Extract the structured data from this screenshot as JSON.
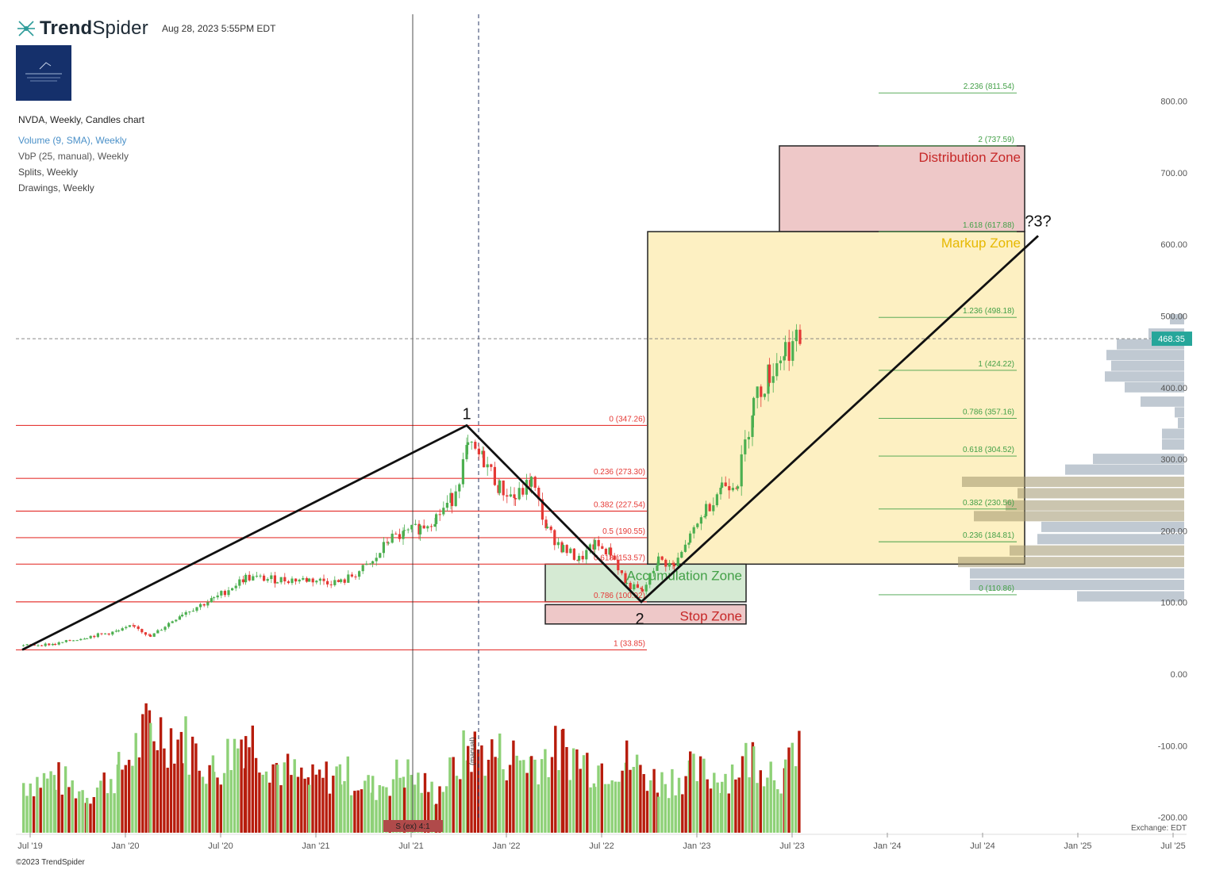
{
  "header": {
    "brand_bold": "Trend",
    "brand_light": "Spider",
    "timestamp": "Aug 28, 2023 5:55PM EDT",
    "copyright": "©2023 TrendSpider",
    "exchange": "Exchange: EDT"
  },
  "legend": {
    "main": "NVDA, Weekly, Candles chart",
    "volume": "Volume (9, SMA), Weekly",
    "vbp": "VbP (25, manual), Weekly",
    "splits": "Splits, Weekly",
    "drawings": "Drawings, Weekly"
  },
  "colors": {
    "up": "#4caf50",
    "down": "#e53935",
    "vol_up": "#8ed177",
    "vol_down": "#b71c0c",
    "fib_red": "#e53935",
    "fib_green": "#43a047",
    "price_tag": "#26a69a"
  },
  "chart_data": {
    "type": "candlestick",
    "symbol": "NVDA",
    "interval": "Weekly",
    "current_price": "468.35",
    "price_axis_labels": [
      "800.00",
      "700.00",
      "600.00",
      "500.00",
      "400.00",
      "300.00",
      "200.00",
      "100.00",
      "0.00",
      "-100.00",
      "-200.00"
    ],
    "price_axis_values": [
      800,
      700,
      600,
      500,
      400,
      300,
      200,
      100,
      0,
      -100,
      -200
    ],
    "time_axis_labels": [
      "Jul '19",
      "Jan '20",
      "Jul '20",
      "Jan '21",
      "Jul '21",
      "Jan '22",
      "Jul '22",
      "Jan '23",
      "Jul '23",
      "Jan '24",
      "Jul '24",
      "Jan '25",
      "Jul '25"
    ],
    "time_axis_values": [
      "2019-07",
      "2020-01",
      "2020-07",
      "2021-01",
      "2021-07",
      "2022-01",
      "2022-07",
      "2023-01",
      "2023-07",
      "2024-01",
      "2024-07",
      "2025-01",
      "2025-07"
    ],
    "price_path": [
      {
        "t": "2019-07",
        "p": 40
      },
      {
        "t": "2019-09",
        "p": 42
      },
      {
        "t": "2019-11",
        "p": 52
      },
      {
        "t": "2020-01",
        "p": 60
      },
      {
        "t": "2020-02",
        "p": 68
      },
      {
        "t": "2020-03",
        "p": 52
      },
      {
        "t": "2020-05",
        "p": 85
      },
      {
        "t": "2020-07",
        "p": 105
      },
      {
        "t": "2020-09",
        "p": 135
      },
      {
        "t": "2020-11",
        "p": 132
      },
      {
        "t": "2021-01",
        "p": 132
      },
      {
        "t": "2021-03",
        "p": 128
      },
      {
        "t": "2021-05",
        "p": 155
      },
      {
        "t": "2021-06",
        "p": 188
      },
      {
        "t": "2021-07",
        "p": 195
      },
      {
        "t": "2021-08",
        "p": 205
      },
      {
        "t": "2021-09",
        "p": 220
      },
      {
        "t": "2021-10",
        "p": 245
      },
      {
        "t": "2021-11",
        "p": 315
      },
      {
        "t": "2021-12",
        "p": 300
      },
      {
        "t": "2022-01",
        "p": 260
      },
      {
        "t": "2022-02",
        "p": 245
      },
      {
        "t": "2022-03",
        "p": 270
      },
      {
        "t": "2022-04",
        "p": 200
      },
      {
        "t": "2022-05",
        "p": 175
      },
      {
        "t": "2022-06",
        "p": 160
      },
      {
        "t": "2022-07",
        "p": 180
      },
      {
        "t": "2022-08",
        "p": 170
      },
      {
        "t": "2022-09",
        "p": 125
      },
      {
        "t": "2022-10",
        "p": 115
      },
      {
        "t": "2022-11",
        "p": 160
      },
      {
        "t": "2022-12",
        "p": 150
      },
      {
        "t": "2023-01",
        "p": 190
      },
      {
        "t": "2023-02",
        "p": 230
      },
      {
        "t": "2023-03",
        "p": 265
      },
      {
        "t": "2023-04",
        "p": 270
      },
      {
        "t": "2023-05",
        "p": 380
      },
      {
        "t": "2023-06",
        "p": 420
      },
      {
        "t": "2023-07",
        "p": 455
      },
      {
        "t": "2023-08",
        "p": 465
      }
    ],
    "fib_retracement": [
      {
        "label": "0 (347.26)",
        "value": 347.26
      },
      {
        "label": "0.236 (273.30)",
        "value": 273.3
      },
      {
        "label": "0.382 (227.54)",
        "value": 227.54
      },
      {
        "label": "0.5 (190.55)",
        "value": 190.55
      },
      {
        "label": "0.618 (153.57)",
        "value": 153.57
      },
      {
        "label": "0.786 (100.92)",
        "value": 100.92
      },
      {
        "label": "1 (33.85)",
        "value": 33.85
      }
    ],
    "fib_extension": [
      {
        "label": "2.236 (811.54)",
        "value": 811.54
      },
      {
        "label": "2 (737.59)",
        "value": 737.59
      },
      {
        "label": "1.618 (617.88)",
        "value": 617.88
      },
      {
        "label": "1.236 (498.18)",
        "value": 498.18
      },
      {
        "label": "1 (424.22)",
        "value": 424.22
      },
      {
        "label": "0.786 (357.16)",
        "value": 357.16
      },
      {
        "label": "0.618 (304.52)",
        "value": 304.52
      },
      {
        "label": "0.382 (230.56)",
        "value": 230.56
      },
      {
        "label": "0.236 (184.81)",
        "value": 184.81
      },
      {
        "label": "0 (110.86)",
        "value": 110.86
      }
    ],
    "zones": [
      {
        "label": "Distribution Zone",
        "low": 617.88,
        "high": 737.59
      },
      {
        "label": "Markup Zone",
        "low": 153.57,
        "high": 617.88
      },
      {
        "label": "Accumulation Zone",
        "low": 100.92,
        "high": 153.57
      },
      {
        "label": "Stop Zone",
        "low": 70,
        "high": 97
      }
    ],
    "wave_labels": [
      "1",
      "2",
      "?3?"
    ],
    "wave_points": [
      {
        "t": "2019-07",
        "p": 33.85
      },
      {
        "t": "2021-11",
        "p": 347.26
      },
      {
        "t": "2022-10",
        "p": 100.92
      },
      {
        "t": "2024-11",
        "p": 612
      }
    ],
    "split_label": "S (ex) 4:1",
    "vbp_label": "(manual)",
    "vbp_profile": [
      {
        "price": 495,
        "width": 18
      },
      {
        "price": 475,
        "width": 45
      },
      {
        "price": 460,
        "width": 85
      },
      {
        "price": 445,
        "width": 98
      },
      {
        "price": 430,
        "width": 92
      },
      {
        "price": 415,
        "width": 100
      },
      {
        "price": 400,
        "width": 75
      },
      {
        "price": 380,
        "width": 55
      },
      {
        "price": 365,
        "width": 12
      },
      {
        "price": 350,
        "width": 8
      },
      {
        "price": 335,
        "width": 28
      },
      {
        "price": 320,
        "width": 28
      },
      {
        "price": 300,
        "width": 115
      },
      {
        "price": 285,
        "width": 150
      },
      {
        "price": 268,
        "width": 280
      },
      {
        "price": 252,
        "width": 210
      },
      {
        "price": 235,
        "width": 225
      },
      {
        "price": 220,
        "width": 265
      },
      {
        "price": 205,
        "width": 180
      },
      {
        "price": 188,
        "width": 185
      },
      {
        "price": 172,
        "width": 220
      },
      {
        "price": 156,
        "width": 285
      },
      {
        "price": 140,
        "width": 270
      },
      {
        "price": 124,
        "width": 270
      },
      {
        "price": 108,
        "width": 135
      }
    ],
    "volume": [
      {
        "t": "2019-07",
        "v": 0.45,
        "up": true
      },
      {
        "t": "2019-09",
        "v": 0.5,
        "up": false
      },
      {
        "t": "2019-11",
        "v": 0.35,
        "up": true
      },
      {
        "t": "2020-01",
        "v": 0.55,
        "up": false
      },
      {
        "t": "2020-03",
        "v": 0.95,
        "up": false
      },
      {
        "t": "2020-05",
        "v": 0.85,
        "up": true
      },
      {
        "t": "2020-07",
        "v": 0.55,
        "up": false
      },
      {
        "t": "2020-09",
        "v": 0.9,
        "up": false
      },
      {
        "t": "2020-11",
        "v": 0.6,
        "up": true
      },
      {
        "t": "2021-01",
        "v": 0.45,
        "up": false
      },
      {
        "t": "2021-03",
        "v": 0.55,
        "up": true
      },
      {
        "t": "2021-05",
        "v": 0.4,
        "up": true
      },
      {
        "t": "2021-07",
        "v": 0.55,
        "up": true
      },
      {
        "t": "2021-09",
        "v": 0.35,
        "up": true
      },
      {
        "t": "2021-11",
        "v": 0.75,
        "up": false
      },
      {
        "t": "2022-01",
        "v": 0.7,
        "up": false
      },
      {
        "t": "2022-03",
        "v": 0.65,
        "up": true
      },
      {
        "t": "2022-05",
        "v": 0.75,
        "up": false
      },
      {
        "t": "2022-07",
        "v": 0.6,
        "up": true
      },
      {
        "t": "2022-09",
        "v": 0.65,
        "up": false
      },
      {
        "t": "2022-11",
        "v": 0.45,
        "up": true
      },
      {
        "t": "2023-01",
        "v": 0.55,
        "up": true
      },
      {
        "t": "2023-03",
        "v": 0.5,
        "up": false
      },
      {
        "t": "2023-05",
        "v": 0.7,
        "up": true
      },
      {
        "t": "2023-07",
        "v": 0.5,
        "up": false
      },
      {
        "t": "2023-08",
        "v": 0.98,
        "up": true
      }
    ]
  }
}
